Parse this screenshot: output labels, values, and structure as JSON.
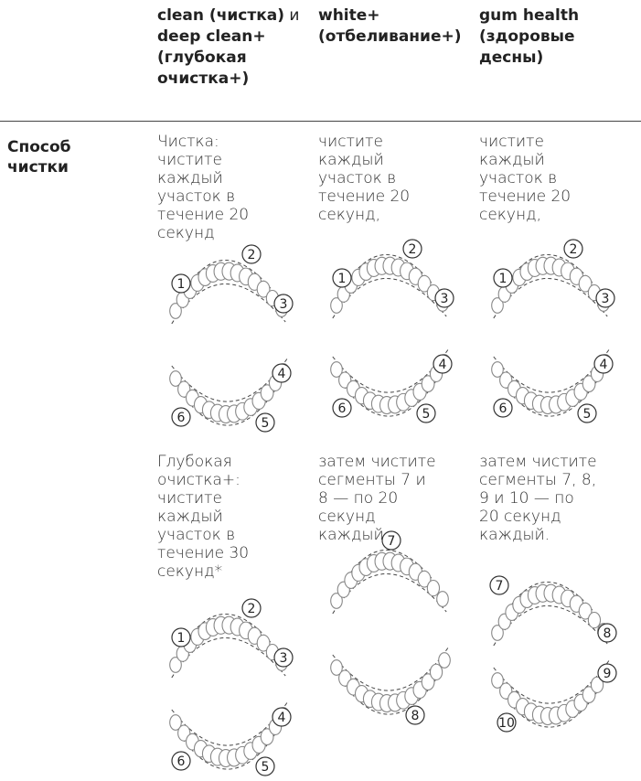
{
  "header": {
    "columns": [
      [
        "clean (чистка)",
        "и",
        "deep clean+",
        "(глубокая очистка+)"
      ],
      [
        "white+",
        "(отбеливание+)"
      ],
      [
        "gum health",
        "(здоровые десны)"
      ]
    ]
  },
  "rows": [
    {
      "label": "Способ чистки",
      "cells": [
        {
          "blocks": [
            {
              "text": "Чистка: чистите каждый участок в течение 20 секунд",
              "diagrams": [
                [
                  "1",
                  "2",
                  "3"
                ],
                [
                  "4",
                  "5",
                  "6"
                ]
              ]
            },
            {
              "text": "Глубокая очистка+: чистите каждый участок в течение 30 секунд*",
              "diagrams": [
                [
                  "1",
                  "2",
                  "3"
                ],
                [
                  "4",
                  "5",
                  "6"
                ]
              ]
            }
          ]
        },
        {
          "blocks": [
            {
              "text": "чистите каждый участок в течение 20 секунд,",
              "diagrams": [
                [
                  "1",
                  "2",
                  "3"
                ],
                [
                  "4",
                  "5",
                  "6"
                ]
              ]
            },
            {
              "text": "затем чистите сегменты 7 и 8 — по 20 секунд каждый.",
              "diagrams": [
                [
                  "7"
                ],
                [
                  "8"
                ]
              ]
            }
          ]
        },
        {
          "blocks": [
            {
              "text": "чистите каждый участок в течение 20 секунд,",
              "diagrams": [
                [
                  "1",
                  "2",
                  "3"
                ],
                [
                  "4",
                  "5",
                  "6"
                ]
              ]
            },
            {
              "text": "затем чистите сегменты 7, 8, 9 и 10 — по 20 секунд каждый.",
              "diagrams": [
                [
                  "7",
                  "8"
                ],
                [
                  "9",
                  "10"
                ]
              ]
            }
          ]
        }
      ]
    }
  ]
}
